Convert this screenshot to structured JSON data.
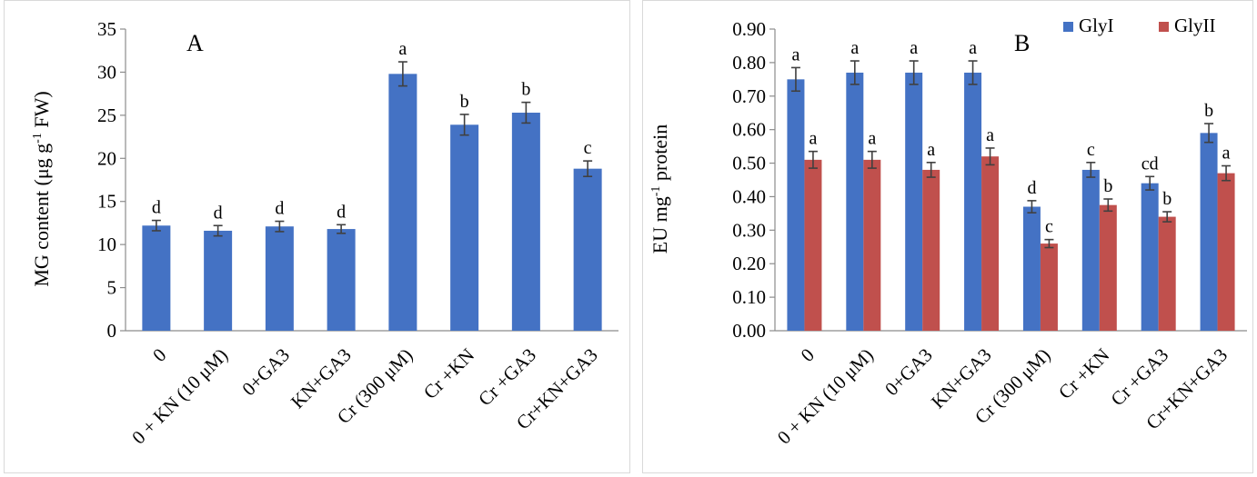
{
  "chart_data": [
    {
      "type": "bar",
      "panel_label": "A",
      "ylabel": "MG content (μg g⁻¹ FW)",
      "ylabel_parts": {
        "main": "MG content (μg g",
        "sup": "-1",
        "end": " FW)"
      },
      "ylim": [
        0,
        35
      ],
      "yticks": [
        0,
        5,
        10,
        15,
        20,
        25,
        30,
        35
      ],
      "ytick_labels": [
        "0",
        "5",
        "10",
        "15",
        "20",
        "25",
        "30",
        "35"
      ],
      "grid": false,
      "categories": [
        "0",
        "0 + KN (10 μM)",
        "0+GA3",
        "KN+GA3",
        "Cr (300 μM)",
        "Cr +KN",
        "Cr +GA3",
        "Cr+KN+GA3"
      ],
      "series": [
        {
          "color": "#4472c4",
          "values": [
            12.2,
            11.6,
            12.1,
            11.8,
            29.8,
            23.9,
            25.3,
            18.8
          ],
          "errors": [
            0.6,
            0.6,
            0.6,
            0.5,
            1.4,
            1.2,
            1.2,
            0.9
          ],
          "letters": [
            "d",
            "d",
            "d",
            "d",
            "a",
            "b",
            "b",
            "c"
          ]
        }
      ]
    },
    {
      "type": "bar",
      "panel_label": "B",
      "ylabel": "EU mg⁻¹ protein",
      "ylabel_parts": {
        "main": "EU mg",
        "sup": "-1",
        "end": " protein"
      },
      "ylim": [
        0,
        0.9
      ],
      "yticks": [
        0,
        0.1,
        0.2,
        0.3,
        0.4,
        0.5,
        0.6,
        0.7,
        0.8,
        0.9
      ],
      "ytick_labels": [
        "0.00",
        "0.10",
        "0.20",
        "0.30",
        "0.40",
        "0.50",
        "0.60",
        "0.70",
        "0.80",
        "0.90"
      ],
      "grid": false,
      "legend_position": "top-right",
      "categories": [
        "0",
        "0 + KN (10 μM)",
        "0+GA3",
        "KN+GA3",
        "Cr (300 μM)",
        "Cr +KN",
        "Cr +GA3",
        "Cr+KN+GA3"
      ],
      "series": [
        {
          "name": "GlyI",
          "color": "#4472c4",
          "values": [
            0.75,
            0.77,
            0.77,
            0.77,
            0.37,
            0.48,
            0.44,
            0.59
          ],
          "errors": [
            0.035,
            0.035,
            0.035,
            0.035,
            0.018,
            0.022,
            0.02,
            0.028
          ],
          "letters": [
            "a",
            "a",
            "a",
            "a",
            "d",
            "c",
            "cd",
            "b"
          ]
        },
        {
          "name": "GlyII",
          "color": "#c0504d",
          "values": [
            0.51,
            0.51,
            0.48,
            0.52,
            0.26,
            0.375,
            0.34,
            0.47
          ],
          "errors": [
            0.025,
            0.025,
            0.022,
            0.025,
            0.012,
            0.018,
            0.015,
            0.022
          ],
          "letters": [
            "a",
            "a",
            "a",
            "a",
            "c",
            "b",
            "b",
            "a"
          ]
        }
      ]
    }
  ]
}
